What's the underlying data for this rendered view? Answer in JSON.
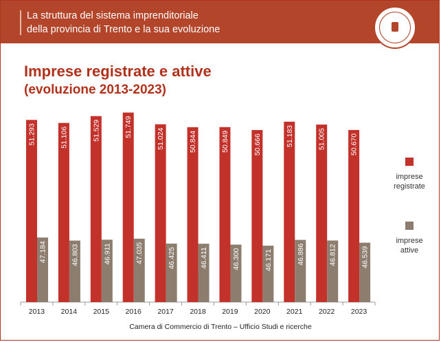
{
  "header": {
    "line1": "La struttura del sistema imprenditoriale",
    "line2": "della provincia di Trento e la sua evoluzione"
  },
  "slide": {
    "title": "Imprese registrate e attive",
    "subtitle": "(evoluzione 2013-2023)"
  },
  "footer": "Camera di Commercio di Trento – Ufficio Studi e ricerche",
  "colors": {
    "brand": "#b2452a",
    "registrate": "#c3312b",
    "attive": "#8c7d6e"
  },
  "chart_data": {
    "type": "bar",
    "categories": [
      "2013",
      "2014",
      "2015",
      "2016",
      "2017",
      "2018",
      "2019",
      "2020",
      "2021",
      "2022",
      "2023"
    ],
    "series": [
      {
        "name": "imprese registrate",
        "values": [
          51293,
          51106,
          51529,
          51749,
          51024,
          50844,
          50849,
          50666,
          51183,
          51005,
          50670
        ],
        "labels": [
          "51.293",
          "51.106",
          "51.529",
          "51.749",
          "51.024",
          "50.844",
          "50.849",
          "50.666",
          "51.183",
          "51.005",
          "50.670"
        ]
      },
      {
        "name": "imprese attive",
        "values": [
          47184,
          46803,
          46911,
          47035,
          46425,
          46411,
          46300,
          46171,
          46886,
          46812,
          46539
        ],
        "labels": [
          "47.184",
          "46.803",
          "46.911",
          "47.035",
          "46.425",
          "46.411",
          "46.300",
          "46.171",
          "46.886",
          "46.812",
          "46.539"
        ]
      }
    ],
    "legend": {
      "series1_line1": "imprese",
      "series1_line2": "registrate",
      "series2_line1": "imprese",
      "series2_line2": "attive",
      "position": "right"
    },
    "grid": false
  }
}
